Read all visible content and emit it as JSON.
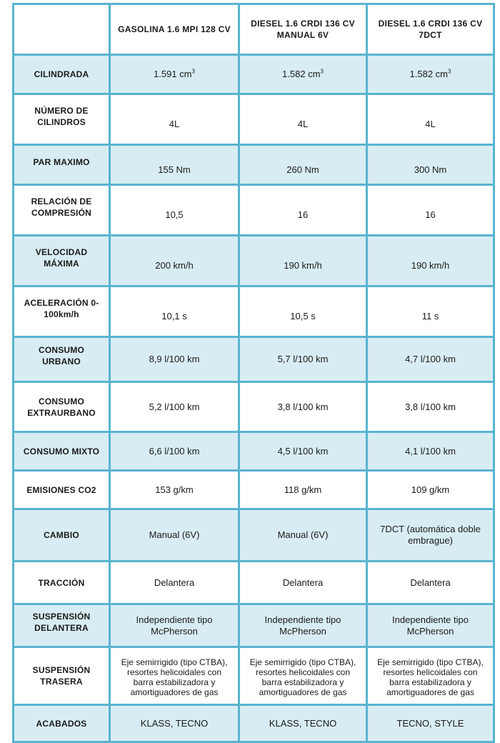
{
  "columns": [
    "",
    "GASOLINA 1.6 MPI 128 CV",
    "DIESEL 1.6 CRDI 136 CV MANUAL 6V",
    "DIESEL 1.6 CRDI 136 CV 7DCT"
  ],
  "rows": [
    {
      "label": "CILINDRADA",
      "values": [
        "1.591 cm",
        "1.582 cm",
        "1.582 cm"
      ],
      "sup": "3"
    },
    {
      "label": "NÚMERO DE CILINDROS",
      "values": [
        "4L",
        "4L",
        "4L"
      ]
    },
    {
      "label": "PAR MAXIMO",
      "values": [
        "155 Nm",
        "260 Nm",
        "300 Nm"
      ]
    },
    {
      "label": "RELACIÓN DE COMPRESIÓN",
      "values": [
        "10,5",
        "16",
        "16"
      ]
    },
    {
      "label": "VELOCIDAD MÁXIMA",
      "values": [
        "200 km/h",
        "190 km/h",
        "190 km/h"
      ]
    },
    {
      "label": "ACELERACIÓN 0-100km/h",
      "values": [
        "10,1 s",
        "10,5 s",
        "11 s"
      ]
    },
    {
      "label": "CONSUMO URBANO",
      "values": [
        "8,9 l/100 km",
        "5,7 l/100 km",
        "4,7 l/100 km"
      ]
    },
    {
      "label": "CONSUMO EXTRAURBANO",
      "values": [
        "5,2 l/100 km",
        "3,8 l/100 km",
        "3,8 l/100 km"
      ]
    },
    {
      "label": "CONSUMO MIXTO",
      "values": [
        "6,6 l/100 km",
        "4,5 l/100 km",
        "4,1 l/100 km"
      ]
    },
    {
      "label": "EMISIONES CO2",
      "values": [
        "153 g/km",
        "118 g/km",
        "109 g/km"
      ]
    },
    {
      "label": "CAMBIO",
      "values": [
        "Manual (6V)",
        "Manual (6V)",
        "7DCT (automática doble embrague)"
      ]
    },
    {
      "label": "TRACCIÓN",
      "values": [
        "Delantera",
        "Delantera",
        "Delantera"
      ]
    },
    {
      "label": "SUSPENSIÓN DELANTERA",
      "values": [
        "Independiente tipo McPherson",
        "Independiente tipo McPherson",
        "Independiente tipo McPherson"
      ]
    },
    {
      "label": "SUSPENSIÓN TRASERA",
      "values": [
        "Eje semirrigido (tipo CTBA), resortes helicoidales con barra estabilizadora y amortiguadores de gas",
        "Eje semirrigido (tipo CTBA), resortes helicoidales con barra estabilizadora y amortiguadores de gas",
        "Eje semirrigido (tipo CTBA), resortes helicoidales con barra estabilizadora y amortiguadores de gas"
      ]
    },
    {
      "label": "ACABADOS",
      "values": [
        "KLASS, TECNO",
        "KLASS, TECNO",
        "TECNO, STYLE"
      ]
    }
  ],
  "colors": {
    "border": "#59b4d0",
    "row_shade": "#d8edf3",
    "background": "#ffffff"
  }
}
